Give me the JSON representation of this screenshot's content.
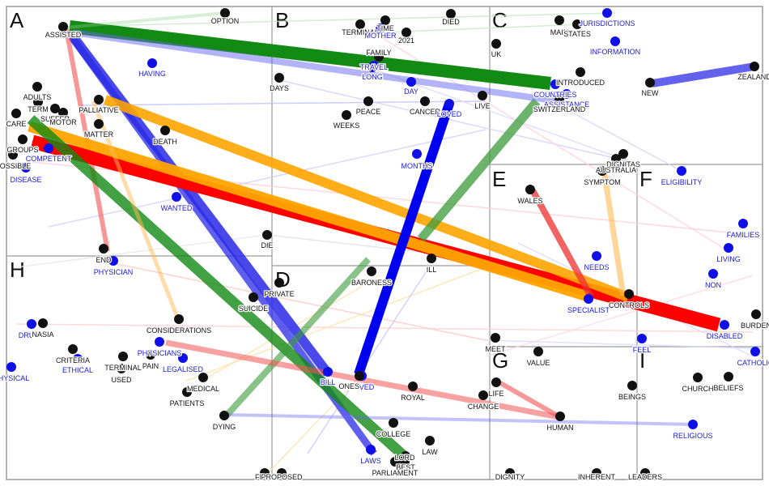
{
  "regions": [
    "A",
    "B",
    "C",
    "D",
    "E",
    "F",
    "G",
    "H",
    "I"
  ],
  "nodes": [
    {
      "text": "OPTION",
      "color": "black"
    },
    {
      "text": "ASSISTED",
      "color": "black"
    },
    {
      "text": "TERMINAL",
      "color": "black"
    },
    {
      "text": "TIME",
      "color": "black"
    },
    {
      "text": "MOTHER",
      "color": "blue"
    },
    {
      "text": "2021",
      "color": "black"
    },
    {
      "text": "DIED",
      "color": "black"
    },
    {
      "text": "FAMILY",
      "color": "black"
    },
    {
      "text": "TRAVEL",
      "color": "blue"
    },
    {
      "text": "LONG",
      "color": "blue"
    },
    {
      "text": "DAY",
      "color": "blue"
    },
    {
      "text": "HAVING",
      "color": "blue"
    },
    {
      "text": "DAYS",
      "color": "black"
    },
    {
      "text": "MAIN",
      "color": "black"
    },
    {
      "text": "STATES",
      "color": "black"
    },
    {
      "text": "JURISDICTIONS",
      "color": "blue"
    },
    {
      "text": "INFORMATION",
      "color": "blue"
    },
    {
      "text": "UK",
      "color": "black"
    },
    {
      "text": "ZEALAND",
      "color": "black"
    },
    {
      "text": "NEW",
      "color": "black"
    },
    {
      "text": "INTRODUCED",
      "color": "black"
    },
    {
      "text": "COUNTRIES",
      "color": "blue"
    },
    {
      "text": "ASSISTANCE",
      "color": "blue"
    },
    {
      "text": "SWITZERLAND",
      "color": "black"
    },
    {
      "text": "ADULTS",
      "color": "black"
    },
    {
      "text": "TERM",
      "color": "black"
    },
    {
      "text": "SUFFER",
      "color": "black"
    },
    {
      "text": "MOTOR",
      "color": "black"
    },
    {
      "text": "PALLIATIVE",
      "color": "black"
    },
    {
      "text": "CARE",
      "color": "black"
    },
    {
      "text": "MATTER",
      "color": "black"
    },
    {
      "text": "PEACE",
      "color": "black"
    },
    {
      "text": "WEEKS",
      "color": "black"
    },
    {
      "text": "CANCER",
      "color": "black"
    },
    {
      "text": "LOVED",
      "color": "blue"
    },
    {
      "text": "LIVE",
      "color": "black"
    },
    {
      "text": "DEATH",
      "color": "black"
    },
    {
      "text": "GROUPS",
      "color": "black"
    },
    {
      "text": "COMPETENT",
      "color": "blue"
    },
    {
      "text": "POSSIBLE",
      "color": "black"
    },
    {
      "text": "DISEASE",
      "color": "blue"
    },
    {
      "text": "MONTHS",
      "color": "blue"
    },
    {
      "text": "DIGNITAS",
      "color": "black"
    },
    {
      "text": "AUSTRALIA",
      "color": "black"
    },
    {
      "text": "SYMPTOM",
      "color": "black"
    },
    {
      "text": "ELIGIBILITY",
      "color": "blue"
    },
    {
      "text": "WALES",
      "color": "black"
    },
    {
      "text": "WANTED",
      "color": "blue"
    },
    {
      "text": "FAMILIES",
      "color": "blue"
    },
    {
      "text": "LIVING",
      "color": "blue"
    },
    {
      "text": "DIE",
      "color": "black"
    },
    {
      "text": "NON",
      "color": "blue"
    },
    {
      "text": "END",
      "color": "black"
    },
    {
      "text": "PHYSICIAN",
      "color": "blue"
    },
    {
      "text": "ILL",
      "color": "black"
    },
    {
      "text": "NEEDS",
      "color": "blue"
    },
    {
      "text": "BARONESS",
      "color": "black"
    },
    {
      "text": "PRIVATE",
      "color": "black"
    },
    {
      "text": "SUICIDE",
      "color": "black"
    },
    {
      "text": "SPECIALIST",
      "color": "blue"
    },
    {
      "text": "CONTROLS",
      "color": "black"
    },
    {
      "text": "BURDEN",
      "color": "black"
    },
    {
      "text": "DISABLED",
      "color": "blue"
    },
    {
      "text": "DRUGS",
      "color": "blue"
    },
    {
      "text": "NASIA",
      "color": "black"
    },
    {
      "text": "CONSIDERATIONS",
      "color": "black"
    },
    {
      "text": "CRITERIA",
      "color": "black"
    },
    {
      "text": "ETHICAL",
      "color": "blue"
    },
    {
      "text": "PHYSICIANS",
      "color": "blue"
    },
    {
      "text": "PAIN",
      "color": "black"
    },
    {
      "text": "TERMINAL",
      "color": "black"
    },
    {
      "text": "LEGALISED",
      "color": "blue"
    },
    {
      "text": "USED",
      "color": "black"
    },
    {
      "text": "MEET",
      "color": "black"
    },
    {
      "text": "VALUE",
      "color": "black"
    },
    {
      "text": "FEEL",
      "color": "blue"
    },
    {
      "text": "CATHOLIC",
      "color": "blue"
    },
    {
      "text": "PHYSICAL",
      "color": "blue"
    },
    {
      "text": "MEDICAL",
      "color": "black"
    },
    {
      "text": "BILL",
      "color": "blue"
    },
    {
      "text": "LOVED",
      "color": "blue"
    },
    {
      "text": "ONES",
      "color": "black"
    },
    {
      "text": "ROYAL",
      "color": "black"
    },
    {
      "text": "LIFE",
      "color": "black"
    },
    {
      "text": "CHURCH",
      "color": "black"
    },
    {
      "text": "BELIEFS",
      "color": "black"
    },
    {
      "text": "PATIENTS",
      "color": "black"
    },
    {
      "text": "CHANGE",
      "color": "black"
    },
    {
      "text": "BEINGS",
      "color": "black"
    },
    {
      "text": "HUMAN",
      "color": "black"
    },
    {
      "text": "RELIGIOUS",
      "color": "blue"
    },
    {
      "text": "DYING",
      "color": "black"
    },
    {
      "text": "COLLEGE",
      "color": "black"
    },
    {
      "text": "LAW",
      "color": "black"
    },
    {
      "text": "LAWS",
      "color": "blue"
    },
    {
      "text": "BEST",
      "color": "black"
    },
    {
      "text": "LORD",
      "color": "black"
    },
    {
      "text": "PARLIAMENT",
      "color": "black"
    },
    {
      "text": "FI",
      "color": "black"
    },
    {
      "text": "PROPOSED",
      "color": "black"
    },
    {
      "text": "DIGNITY",
      "color": "black"
    },
    {
      "text": "INHERENT",
      "color": "black"
    },
    {
      "text": "LEADERS",
      "color": "black"
    }
  ],
  "edges": [
    {
      "from": "ASSISTED",
      "to": "COUNTRIES",
      "color": "#138a13"
    },
    {
      "from": "ASSISTED",
      "to": "BILL",
      "color": "#2a2ae8"
    },
    {
      "from": "ASSISTED",
      "to": "LAWS",
      "color": "#2a2ae8"
    },
    {
      "from": "ASSISTED",
      "to": "END",
      "color": "#f25555"
    },
    {
      "from": "ASSISTED",
      "to": "OPTION",
      "color": "#8fcf8f"
    },
    {
      "from": "CARE",
      "to": "DISABLED",
      "color": "#ff0000"
    },
    {
      "from": "CARE",
      "to": "SPECIALIST",
      "color": "#ffa500"
    },
    {
      "from": "CARE",
      "to": "PARLIAMENT",
      "color": "#138a13"
    },
    {
      "from": "MATTER",
      "to": "CONTROLS",
      "color": "#ffa500"
    },
    {
      "from": "MONTHS",
      "to": "SWITZERLAND",
      "color": "#3c9c3c"
    },
    {
      "from": "LOVED",
      "to": "ONES",
      "color": "#0000f0"
    },
    {
      "from": "NEW",
      "to": "ZEALAND",
      "color": "#3c3ce8"
    },
    {
      "from": "DYING",
      "to": "ASSISTANCE",
      "color": "#3c9c3c"
    },
    {
      "from": "WALES",
      "to": "SPECIALIST",
      "color": "#ee3030"
    },
    {
      "from": "SYMPTOM",
      "to": "CONTROLS",
      "color": "#ffbb55"
    },
    {
      "from": "PHYSICIANS",
      "to": "HUMAN",
      "color": "#f25555"
    },
    {
      "from": "LIFE",
      "to": "HUMAN",
      "color": "#f25555"
    },
    {
      "from": "DYING",
      "to": "RELIGIOUS",
      "color": "#6a6af0"
    },
    {
      "from": "PALLIATIVE",
      "to": "DYING",
      "color": "#ffbb55"
    },
    {
      "from": "ASSISTED",
      "to": "ASSISTANCE",
      "color": "#6a6af0"
    }
  ]
}
